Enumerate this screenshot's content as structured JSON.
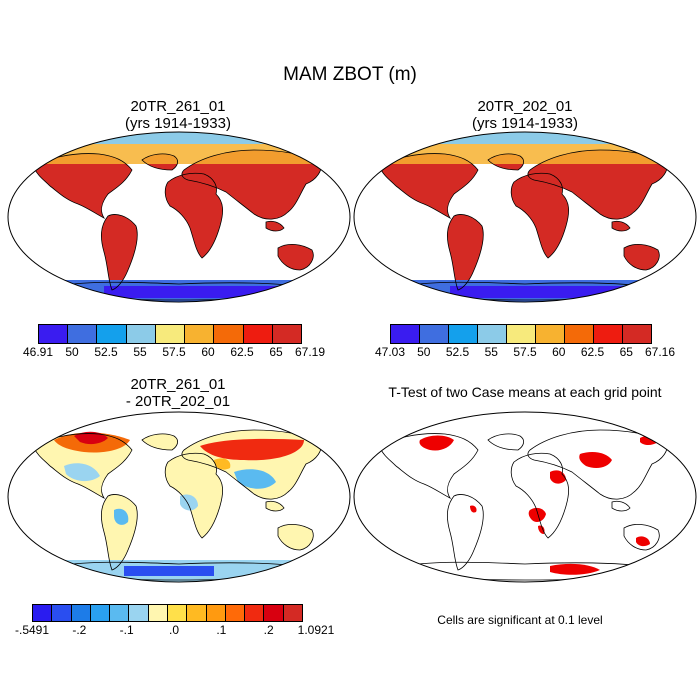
{
  "figure": {
    "title": "MAM ZBOT (m)"
  },
  "panels": [
    {
      "id": "case1",
      "title_line1": "20TR_261_01",
      "title_line2": "(yrs 1914-1933)"
    },
    {
      "id": "case2",
      "title_line1": "20TR_202_01",
      "title_line2": "(yrs 1914-1933)"
    },
    {
      "id": "diff",
      "title_line1": "20TR_261_01",
      "title_line2": "- 20TR_202_01"
    },
    {
      "id": "ttest",
      "title_line1": "T-Test of two Case means at each grid point",
      "title_line2": ""
    }
  ],
  "colorbars": [
    {
      "labels": [
        "46.91",
        "50",
        "52.5",
        "55",
        "57.5",
        "60",
        "62.5",
        "65",
        "67.19"
      ],
      "colors": [
        "#3a1cf0",
        "#3f6ee0",
        "#14a0ec",
        "#8ccbe8",
        "#f7ea7c",
        "#f7b230",
        "#f46a08",
        "#ee1c10",
        "#d42a24"
      ]
    },
    {
      "labels": [
        "47.03",
        "50",
        "52.5",
        "55",
        "57.5",
        "60",
        "62.5",
        "65",
        "67.16"
      ],
      "colors": [
        "#3a1cf0",
        "#3f6ee0",
        "#14a0ec",
        "#8ccbe8",
        "#f7ea7c",
        "#f7b230",
        "#f46a08",
        "#ee1c10",
        "#d42a24"
      ]
    },
    {
      "labels": [
        "-.5491",
        "-.2",
        "-.1",
        ".0",
        ".1",
        ".2",
        "1.0921"
      ],
      "colors": [
        "#2a1cf0",
        "#2a4ef0",
        "#1d7ce8",
        "#2aa0f0",
        "#5abaf0",
        "#9ad4f0",
        "#fff6b0",
        "#ffe04a",
        "#ffba22",
        "#ff9a10",
        "#ff6a08",
        "#f02a10",
        "#d80010",
        "#d42a24"
      ]
    }
  ],
  "note": "Cells are significant at 0.1 level"
}
